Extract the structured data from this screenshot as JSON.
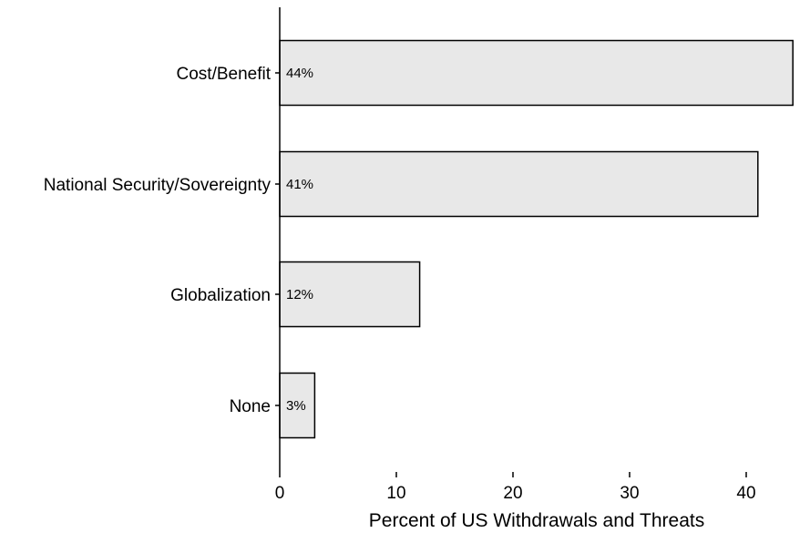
{
  "chart_data": {
    "type": "bar",
    "orientation": "horizontal",
    "title": "",
    "xlabel": "Percent of US Withdrawals and Threats",
    "ylabel": "",
    "categories": [
      "Cost/Benefit",
      "National Security/Sovereignty",
      "Globalization",
      "None"
    ],
    "values": [
      44,
      41,
      12,
      3
    ],
    "data_labels": [
      "44%",
      "41%",
      "12%",
      "3%"
    ],
    "xlim": [
      0,
      45
    ],
    "xticks": [
      0,
      10,
      20,
      30,
      40
    ],
    "grid": false,
    "legend": "none",
    "bar_fill": "#e8e8e8",
    "bar_stroke": "#000000"
  }
}
